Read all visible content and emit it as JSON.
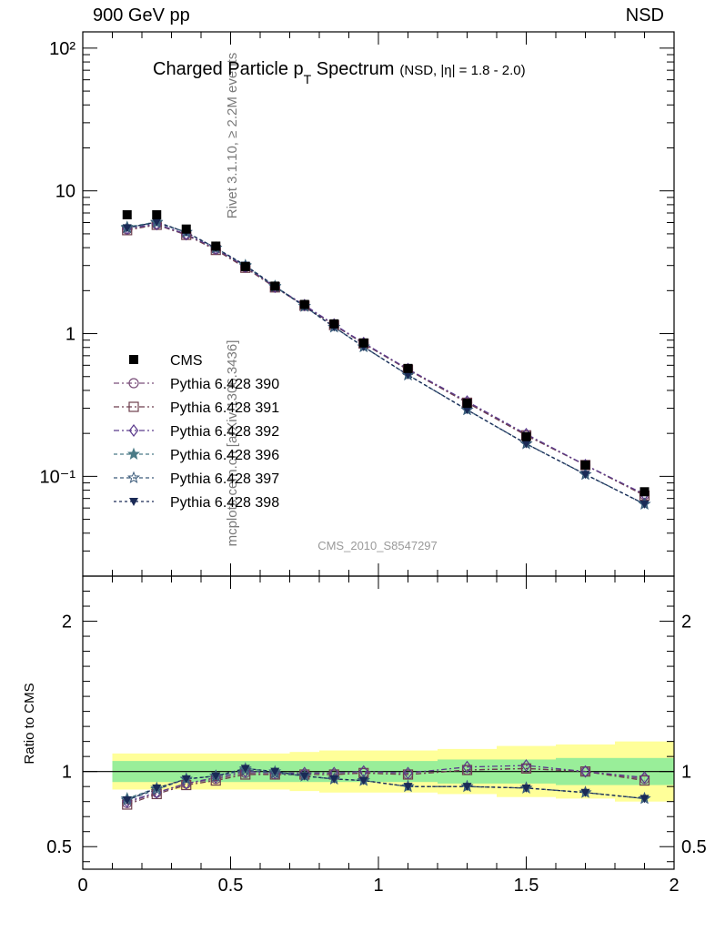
{
  "header": {
    "left": "900 GeV pp",
    "right": "NSD"
  },
  "side_text": {
    "rivet": "Rivet 3.1.10, ≥ 2.2M events",
    "mcplots": "mcplots.cern.ch [arXiv:1306.3436]"
  },
  "colors": {
    "cms": "#000000",
    "p390": "#7a4f7a",
    "p391": "#6e3f4e",
    "p392": "#5a3a8c",
    "p396": "#4a7a86",
    "p397": "#3a5a7a",
    "p398": "#1a2a56",
    "band_inner": "#99ee99",
    "band_outer": "#ffff99"
  },
  "chart_data": {
    "type": "line",
    "title_main": "Charged Particle p",
    "title_sub": "T",
    "title_main2": " Spectrum",
    "title_extra": "(NSD, |η| = 1.8 - 2.0)",
    "watermark": "CMS_2010_S8547297",
    "ratio_ylabel": "Ratio to CMS",
    "x_ticks": [
      "0",
      "0.5",
      "1",
      "1.5",
      "2"
    ],
    "y_ticks_main": [
      "10⁻¹",
      "1",
      "10",
      "10²"
    ],
    "y_ticks_ratio": [
      "0.5",
      "1",
      "2"
    ],
    "xlim": [
      0,
      2
    ],
    "ylim_main": [
      0.02,
      130
    ],
    "ylim_ratio": [
      0.35,
      2.3
    ],
    "x": [
      0.15,
      0.25,
      0.35,
      0.45,
      0.55,
      0.65,
      0.75,
      0.85,
      0.95,
      1.1,
      1.3,
      1.5,
      1.7,
      1.9
    ],
    "x_bins": [
      [
        0.1,
        0.2
      ],
      [
        0.2,
        0.3
      ],
      [
        0.3,
        0.4
      ],
      [
        0.4,
        0.5
      ],
      [
        0.5,
        0.6
      ],
      [
        0.6,
        0.7
      ],
      [
        0.7,
        0.8
      ],
      [
        0.8,
        0.9
      ],
      [
        0.9,
        1.0
      ],
      [
        1.0,
        1.2
      ],
      [
        1.2,
        1.4
      ],
      [
        1.4,
        1.6
      ],
      [
        1.6,
        1.8
      ],
      [
        1.8,
        2.0
      ]
    ],
    "cms": {
      "name": "CMS",
      "values": [
        6.8,
        6.8,
        5.4,
        4.1,
        2.95,
        2.15,
        1.6,
        1.17,
        0.86,
        0.57,
        0.325,
        0.19,
        0.12,
        0.078
      ],
      "band_inner": [
        0.07,
        0.07,
        0.07,
        0.07,
        0.07,
        0.07,
        0.07,
        0.07,
        0.07,
        0.07,
        0.08,
        0.08,
        0.09,
        0.09
      ],
      "band_outer": [
        0.12,
        0.12,
        0.12,
        0.12,
        0.12,
        0.12,
        0.13,
        0.14,
        0.14,
        0.14,
        0.15,
        0.17,
        0.18,
        0.2
      ]
    },
    "series": [
      {
        "name": "Pythia 6.428 390",
        "marker": "circle",
        "dash": "6,3,2,3",
        "ratio": [
          0.79,
          0.86,
          0.92,
          0.95,
          0.99,
          0.98,
          0.98,
          0.98,
          0.99,
          0.98,
          1.01,
          1.02,
          1.0,
          0.95
        ]
      },
      {
        "name": "Pythia 6.428 391",
        "marker": "square",
        "dash": "6,3,2,3",
        "ratio": [
          0.78,
          0.85,
          0.91,
          0.94,
          0.98,
          0.98,
          0.98,
          0.98,
          0.99,
          0.98,
          1.01,
          1.02,
          1.0,
          0.94
        ]
      },
      {
        "name": "Pythia 6.428 392",
        "marker": "diamond",
        "dash": "6,3,2,3",
        "ratio": [
          0.8,
          0.86,
          0.92,
          0.96,
          1.0,
          0.99,
          0.99,
          0.99,
          1.0,
          0.99,
          1.03,
          1.04,
          1.0,
          0.96
        ]
      },
      {
        "name": "Pythia 6.428 396",
        "marker": "star",
        "dash": "4,3",
        "ratio": [
          0.82,
          0.89,
          0.95,
          0.97,
          1.02,
          1.0,
          0.97,
          0.95,
          0.94,
          0.9,
          0.9,
          0.89,
          0.86,
          0.82
        ]
      },
      {
        "name": "Pythia 6.428 397",
        "marker": "star-open",
        "dash": "4,3",
        "ratio": [
          0.81,
          0.88,
          0.95,
          0.97,
          1.01,
          0.99,
          0.97,
          0.95,
          0.94,
          0.9,
          0.9,
          0.89,
          0.86,
          0.82
        ]
      },
      {
        "name": "Pythia 6.428 398",
        "marker": "triangle-down",
        "dash": "3,3",
        "ratio": [
          0.81,
          0.89,
          0.95,
          0.97,
          1.02,
          1.0,
          0.97,
          0.95,
          0.94,
          0.9,
          0.9,
          0.89,
          0.86,
          0.82
        ]
      }
    ]
  }
}
